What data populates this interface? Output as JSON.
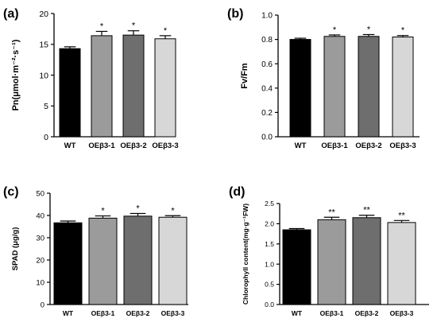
{
  "colors": {
    "axis": "#000000",
    "bar_stroke": "#000000",
    "wt": "#000000",
    "oe1": "#9b9b9b",
    "oe2": "#6e6e6e",
    "oe3": "#d7d7d7"
  },
  "chart_data": [
    {
      "panel_label": "(a)",
      "type": "bar",
      "categories": [
        "WT",
        "OEβ3-1",
        "OEβ3-2",
        "OEβ3-3"
      ],
      "values": [
        14.3,
        16.4,
        16.5,
        15.9
      ],
      "errors": [
        0.3,
        0.7,
        0.7,
        0.5
      ],
      "significance": [
        "",
        "*",
        "*",
        "*"
      ],
      "ylabel": "Pn(μmol·m⁻²·s⁻¹)",
      "xlabel": "",
      "ylim": [
        0,
        20
      ],
      "yticks": [
        "0",
        "5",
        "10",
        "15",
        "20"
      ],
      "grid": false
    },
    {
      "panel_label": "(b)",
      "type": "bar",
      "categories": [
        "WT",
        "OEβ3-1",
        "OEβ3-2",
        "OEβ3-3"
      ],
      "values": [
        0.8,
        0.825,
        0.825,
        0.82
      ],
      "errors": [
        0.01,
        0.012,
        0.015,
        0.012
      ],
      "significance": [
        "",
        "*",
        "*",
        "*"
      ],
      "ylabel": "Fv/Fm",
      "xlabel": "",
      "ylim": [
        0,
        1.0
      ],
      "yticks": [
        "0.0",
        "0.2",
        "0.4",
        "0.6",
        "0.8",
        "1.0"
      ],
      "grid": false
    },
    {
      "panel_label": "(c)",
      "type": "bar",
      "categories": [
        "WT",
        "OEβ3-1",
        "OEβ3-2",
        "OEβ3-3"
      ],
      "values": [
        36.7,
        38.8,
        39.7,
        39.2
      ],
      "errors": [
        0.8,
        1.0,
        1.2,
        0.7
      ],
      "significance": [
        "",
        "*",
        "*",
        "*"
      ],
      "ylabel": "SPAD (μg/g)",
      "xlabel": "",
      "ylim": [
        0,
        50
      ],
      "yticks": [
        "0",
        "10",
        "20",
        "30",
        "40",
        "50"
      ],
      "grid": false
    },
    {
      "panel_label": "(d)",
      "type": "bar",
      "categories": [
        "WT",
        "OEβ3-1",
        "OEβ3-2",
        "OEβ3-3"
      ],
      "values": [
        1.85,
        2.1,
        2.15,
        2.03
      ],
      "errors": [
        0.03,
        0.06,
        0.06,
        0.05
      ],
      "significance": [
        "",
        "**",
        "**",
        "**"
      ],
      "ylabel": "Chlorophyll content(mg·g⁻¹FW)",
      "xlabel": "",
      "ylim": [
        0,
        2.5
      ],
      "yticks": [
        "0.0",
        "0.5",
        "1.0",
        "1.5",
        "2.0",
        "2.5"
      ],
      "grid": false
    }
  ]
}
